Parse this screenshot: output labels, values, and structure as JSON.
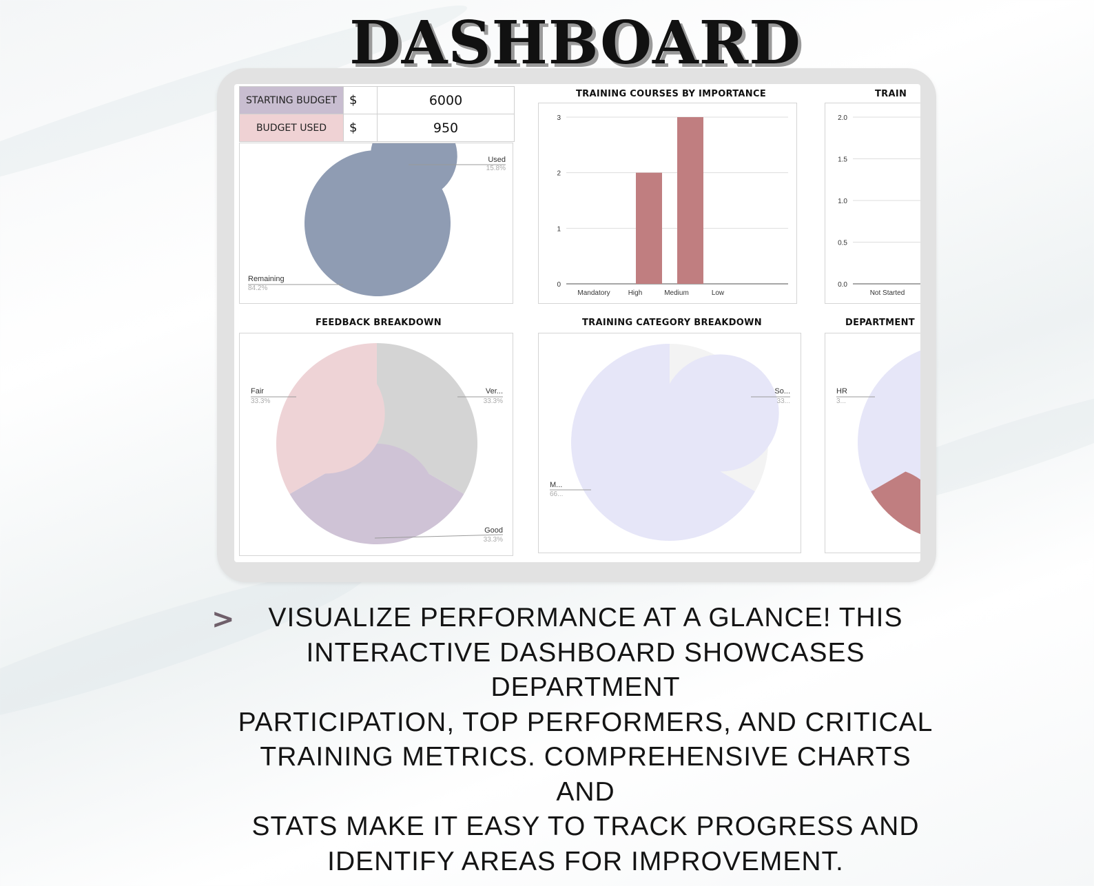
{
  "page": {
    "title": "DASHBOARD",
    "description": "VISUALIZE PERFORMANCE AT A GLANCE! THIS INTERACTIVE DASHBOARD SHOWCASES DEPARTMENT PARTICIPATION, TOP PERFORMERS, AND CRITICAL TRAINING METRICS. COMPREHENSIVE CHARTS AND STATS MAKE IT EASY TO TRACK PROGRESS AND IDENTIFY AREAS FOR IMPROVEMENT.",
    "description_lines": [
      "VISUALIZE PERFORMANCE AT A GLANCE! THIS",
      "INTERACTIVE DASHBOARD SHOWCASES DEPARTMENT",
      "PARTICIPATION, TOP PERFORMERS, AND CRITICAL",
      "TRAINING METRICS. COMPREHENSIVE CHARTS AND",
      "STATS MAKE IT EASY TO TRACK PROGRESS AND",
      "IDENTIFY AREAS FOR IMPROVEMENT."
    ],
    "bullet_icon": "chevron-right-icon"
  },
  "budget": {
    "starting_label": "STARTING BUDGET",
    "starting_currency": "$",
    "starting_value": "6000",
    "used_label": "BUDGET USED",
    "used_currency": "$",
    "used_value": "950"
  },
  "colors": {
    "used": "#cbbfd3",
    "remaining": "#8f9cb3",
    "bar": "#c07e80",
    "fair": "#eed3d6",
    "very": "#d4d4d4",
    "good": "#cfc3d6",
    "some": "#f3f3f3",
    "most": "#e6e6f8",
    "dept_a": "#e6e6f8",
    "dept_b": "#c07e80",
    "starting_label_bg": "#c8bdd0",
    "used_label_bg": "#efd2d4"
  },
  "chart_data": [
    {
      "type": "pie",
      "title": "",
      "donut": true,
      "slices": [
        {
          "label": "Used",
          "percent_label": "15.8%",
          "value": 15.8
        },
        {
          "label": "Remaining",
          "percent_label": "84.2%",
          "value": 84.2
        }
      ]
    },
    {
      "type": "bar",
      "title": "TRAINING COURSES BY IMPORTANCE",
      "categories": [
        "Mandatory",
        "High",
        "Medium",
        "Low"
      ],
      "values": [
        0,
        2,
        3,
        0
      ],
      "ylim": [
        0,
        3
      ],
      "yticks": [
        "0",
        "1",
        "2",
        "3"
      ],
      "grid": true
    },
    {
      "type": "bar",
      "title": "TRAIN",
      "categories": [
        "Not Started"
      ],
      "values": [
        0
      ],
      "ylim": [
        0,
        2
      ],
      "yticks": [
        "0.0",
        "0.5",
        "1.0",
        "1.5",
        "2.0"
      ],
      "grid": true
    },
    {
      "type": "pie",
      "title": "FEEDBACK BREAKDOWN",
      "donut": true,
      "slices": [
        {
          "label": "Ver...",
          "percent_label": "33.3%",
          "value": 33.3
        },
        {
          "label": "Good",
          "percent_label": "33.3%",
          "value": 33.3
        },
        {
          "label": "Fair",
          "percent_label": "33.3%",
          "value": 33.3
        }
      ]
    },
    {
      "type": "pie",
      "title": "TRAINING CATEGORY BREAKDOWN",
      "donut": true,
      "slices": [
        {
          "label": "So...",
          "percent_label": "33...",
          "value": 33.3
        },
        {
          "label": "M...",
          "percent_label": "66...",
          "value": 66.7
        }
      ]
    },
    {
      "type": "pie",
      "title": "DEPARTMENT",
      "donut": true,
      "slices": [
        {
          "label": "HR",
          "percent_label": "3...",
          "value": 33.3
        },
        {
          "label": "",
          "percent_label": "",
          "value": 66.7
        }
      ]
    }
  ]
}
